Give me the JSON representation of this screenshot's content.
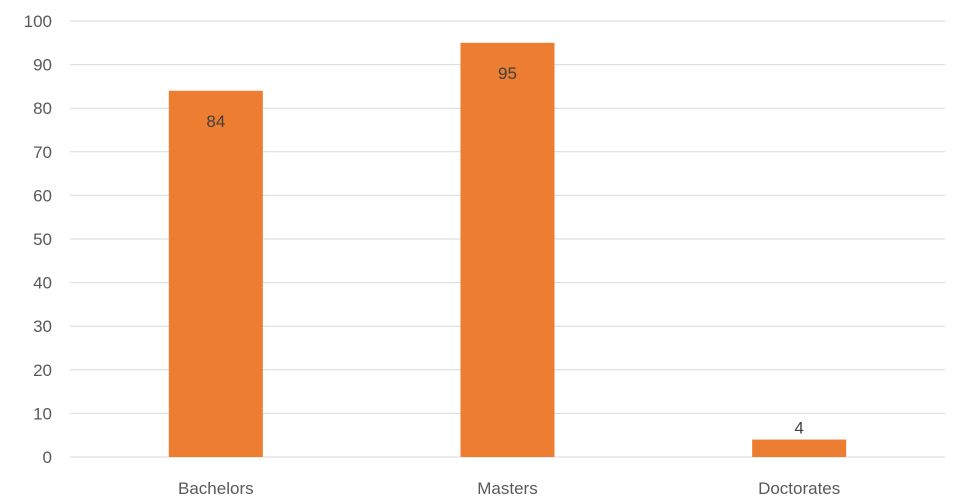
{
  "chart_data": {
    "type": "bar",
    "categories": [
      "Bachelors",
      "Masters",
      "Doctorates"
    ],
    "values": [
      84,
      95,
      4
    ],
    "data_labels": [
      "84",
      "95",
      "4"
    ],
    "ylim": [
      0,
      100
    ],
    "yticks": [
      0,
      10,
      20,
      30,
      40,
      50,
      60,
      70,
      80,
      90,
      100
    ],
    "ytick_labels": [
      "0",
      "10",
      "20",
      "30",
      "40",
      "50",
      "60",
      "70",
      "80",
      "90",
      "100"
    ],
    "grid": true,
    "legend": "none",
    "bar_color": "#ed7d31",
    "gridline_color": "#d9d9d9"
  }
}
